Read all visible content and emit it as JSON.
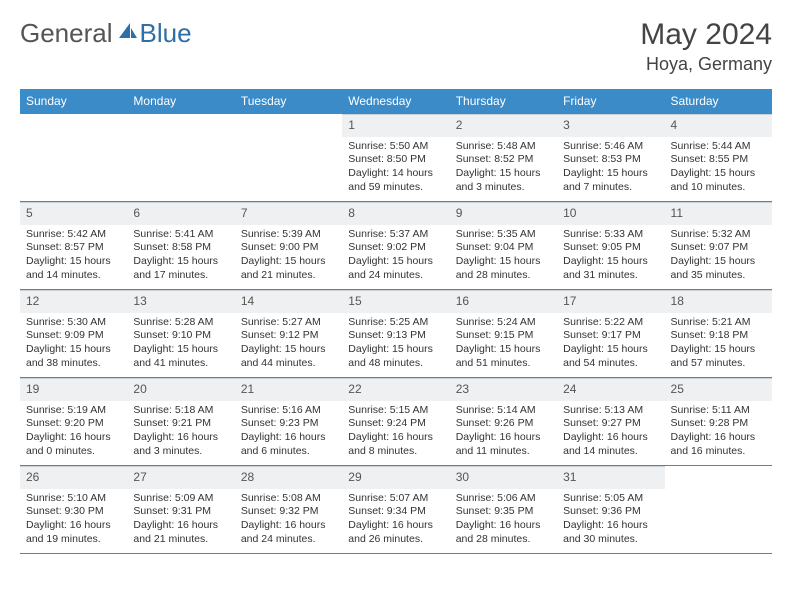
{
  "brand": {
    "part1": "General",
    "part2": "Blue"
  },
  "title": "May 2024",
  "location": "Hoya, Germany",
  "colors": {
    "header_bg": "#3b8bc9",
    "header_text": "#ffffff",
    "daynum_bg": "#eef0f2",
    "border": "#3b8bc9",
    "text": "#333333",
    "brand_gray": "#555555",
    "brand_blue": "#2f6fa7"
  },
  "weekdays": [
    "Sunday",
    "Monday",
    "Tuesday",
    "Wednesday",
    "Thursday",
    "Friday",
    "Saturday"
  ],
  "weeks": [
    [
      {
        "day": "",
        "lines": []
      },
      {
        "day": "",
        "lines": []
      },
      {
        "day": "",
        "lines": []
      },
      {
        "day": "1",
        "lines": [
          "Sunrise: 5:50 AM",
          "Sunset: 8:50 PM",
          "Daylight: 14 hours and 59 minutes."
        ]
      },
      {
        "day": "2",
        "lines": [
          "Sunrise: 5:48 AM",
          "Sunset: 8:52 PM",
          "Daylight: 15 hours and 3 minutes."
        ]
      },
      {
        "day": "3",
        "lines": [
          "Sunrise: 5:46 AM",
          "Sunset: 8:53 PM",
          "Daylight: 15 hours and 7 minutes."
        ]
      },
      {
        "day": "4",
        "lines": [
          "Sunrise: 5:44 AM",
          "Sunset: 8:55 PM",
          "Daylight: 15 hours and 10 minutes."
        ]
      }
    ],
    [
      {
        "day": "5",
        "lines": [
          "Sunrise: 5:42 AM",
          "Sunset: 8:57 PM",
          "Daylight: 15 hours and 14 minutes."
        ]
      },
      {
        "day": "6",
        "lines": [
          "Sunrise: 5:41 AM",
          "Sunset: 8:58 PM",
          "Daylight: 15 hours and 17 minutes."
        ]
      },
      {
        "day": "7",
        "lines": [
          "Sunrise: 5:39 AM",
          "Sunset: 9:00 PM",
          "Daylight: 15 hours and 21 minutes."
        ]
      },
      {
        "day": "8",
        "lines": [
          "Sunrise: 5:37 AM",
          "Sunset: 9:02 PM",
          "Daylight: 15 hours and 24 minutes."
        ]
      },
      {
        "day": "9",
        "lines": [
          "Sunrise: 5:35 AM",
          "Sunset: 9:04 PM",
          "Daylight: 15 hours and 28 minutes."
        ]
      },
      {
        "day": "10",
        "lines": [
          "Sunrise: 5:33 AM",
          "Sunset: 9:05 PM",
          "Daylight: 15 hours and 31 minutes."
        ]
      },
      {
        "day": "11",
        "lines": [
          "Sunrise: 5:32 AM",
          "Sunset: 9:07 PM",
          "Daylight: 15 hours and 35 minutes."
        ]
      }
    ],
    [
      {
        "day": "12",
        "lines": [
          "Sunrise: 5:30 AM",
          "Sunset: 9:09 PM",
          "Daylight: 15 hours and 38 minutes."
        ]
      },
      {
        "day": "13",
        "lines": [
          "Sunrise: 5:28 AM",
          "Sunset: 9:10 PM",
          "Daylight: 15 hours and 41 minutes."
        ]
      },
      {
        "day": "14",
        "lines": [
          "Sunrise: 5:27 AM",
          "Sunset: 9:12 PM",
          "Daylight: 15 hours and 44 minutes."
        ]
      },
      {
        "day": "15",
        "lines": [
          "Sunrise: 5:25 AM",
          "Sunset: 9:13 PM",
          "Daylight: 15 hours and 48 minutes."
        ]
      },
      {
        "day": "16",
        "lines": [
          "Sunrise: 5:24 AM",
          "Sunset: 9:15 PM",
          "Daylight: 15 hours and 51 minutes."
        ]
      },
      {
        "day": "17",
        "lines": [
          "Sunrise: 5:22 AM",
          "Sunset: 9:17 PM",
          "Daylight: 15 hours and 54 minutes."
        ]
      },
      {
        "day": "18",
        "lines": [
          "Sunrise: 5:21 AM",
          "Sunset: 9:18 PM",
          "Daylight: 15 hours and 57 minutes."
        ]
      }
    ],
    [
      {
        "day": "19",
        "lines": [
          "Sunrise: 5:19 AM",
          "Sunset: 9:20 PM",
          "Daylight: 16 hours and 0 minutes."
        ]
      },
      {
        "day": "20",
        "lines": [
          "Sunrise: 5:18 AM",
          "Sunset: 9:21 PM",
          "Daylight: 16 hours and 3 minutes."
        ]
      },
      {
        "day": "21",
        "lines": [
          "Sunrise: 5:16 AM",
          "Sunset: 9:23 PM",
          "Daylight: 16 hours and 6 minutes."
        ]
      },
      {
        "day": "22",
        "lines": [
          "Sunrise: 5:15 AM",
          "Sunset: 9:24 PM",
          "Daylight: 16 hours and 8 minutes."
        ]
      },
      {
        "day": "23",
        "lines": [
          "Sunrise: 5:14 AM",
          "Sunset: 9:26 PM",
          "Daylight: 16 hours and 11 minutes."
        ]
      },
      {
        "day": "24",
        "lines": [
          "Sunrise: 5:13 AM",
          "Sunset: 9:27 PM",
          "Daylight: 16 hours and 14 minutes."
        ]
      },
      {
        "day": "25",
        "lines": [
          "Sunrise: 5:11 AM",
          "Sunset: 9:28 PM",
          "Daylight: 16 hours and 16 minutes."
        ]
      }
    ],
    [
      {
        "day": "26",
        "lines": [
          "Sunrise: 5:10 AM",
          "Sunset: 9:30 PM",
          "Daylight: 16 hours and 19 minutes."
        ]
      },
      {
        "day": "27",
        "lines": [
          "Sunrise: 5:09 AM",
          "Sunset: 9:31 PM",
          "Daylight: 16 hours and 21 minutes."
        ]
      },
      {
        "day": "28",
        "lines": [
          "Sunrise: 5:08 AM",
          "Sunset: 9:32 PM",
          "Daylight: 16 hours and 24 minutes."
        ]
      },
      {
        "day": "29",
        "lines": [
          "Sunrise: 5:07 AM",
          "Sunset: 9:34 PM",
          "Daylight: 16 hours and 26 minutes."
        ]
      },
      {
        "day": "30",
        "lines": [
          "Sunrise: 5:06 AM",
          "Sunset: 9:35 PM",
          "Daylight: 16 hours and 28 minutes."
        ]
      },
      {
        "day": "31",
        "lines": [
          "Sunrise: 5:05 AM",
          "Sunset: 9:36 PM",
          "Daylight: 16 hours and 30 minutes."
        ]
      },
      {
        "day": "",
        "lines": []
      }
    ]
  ]
}
